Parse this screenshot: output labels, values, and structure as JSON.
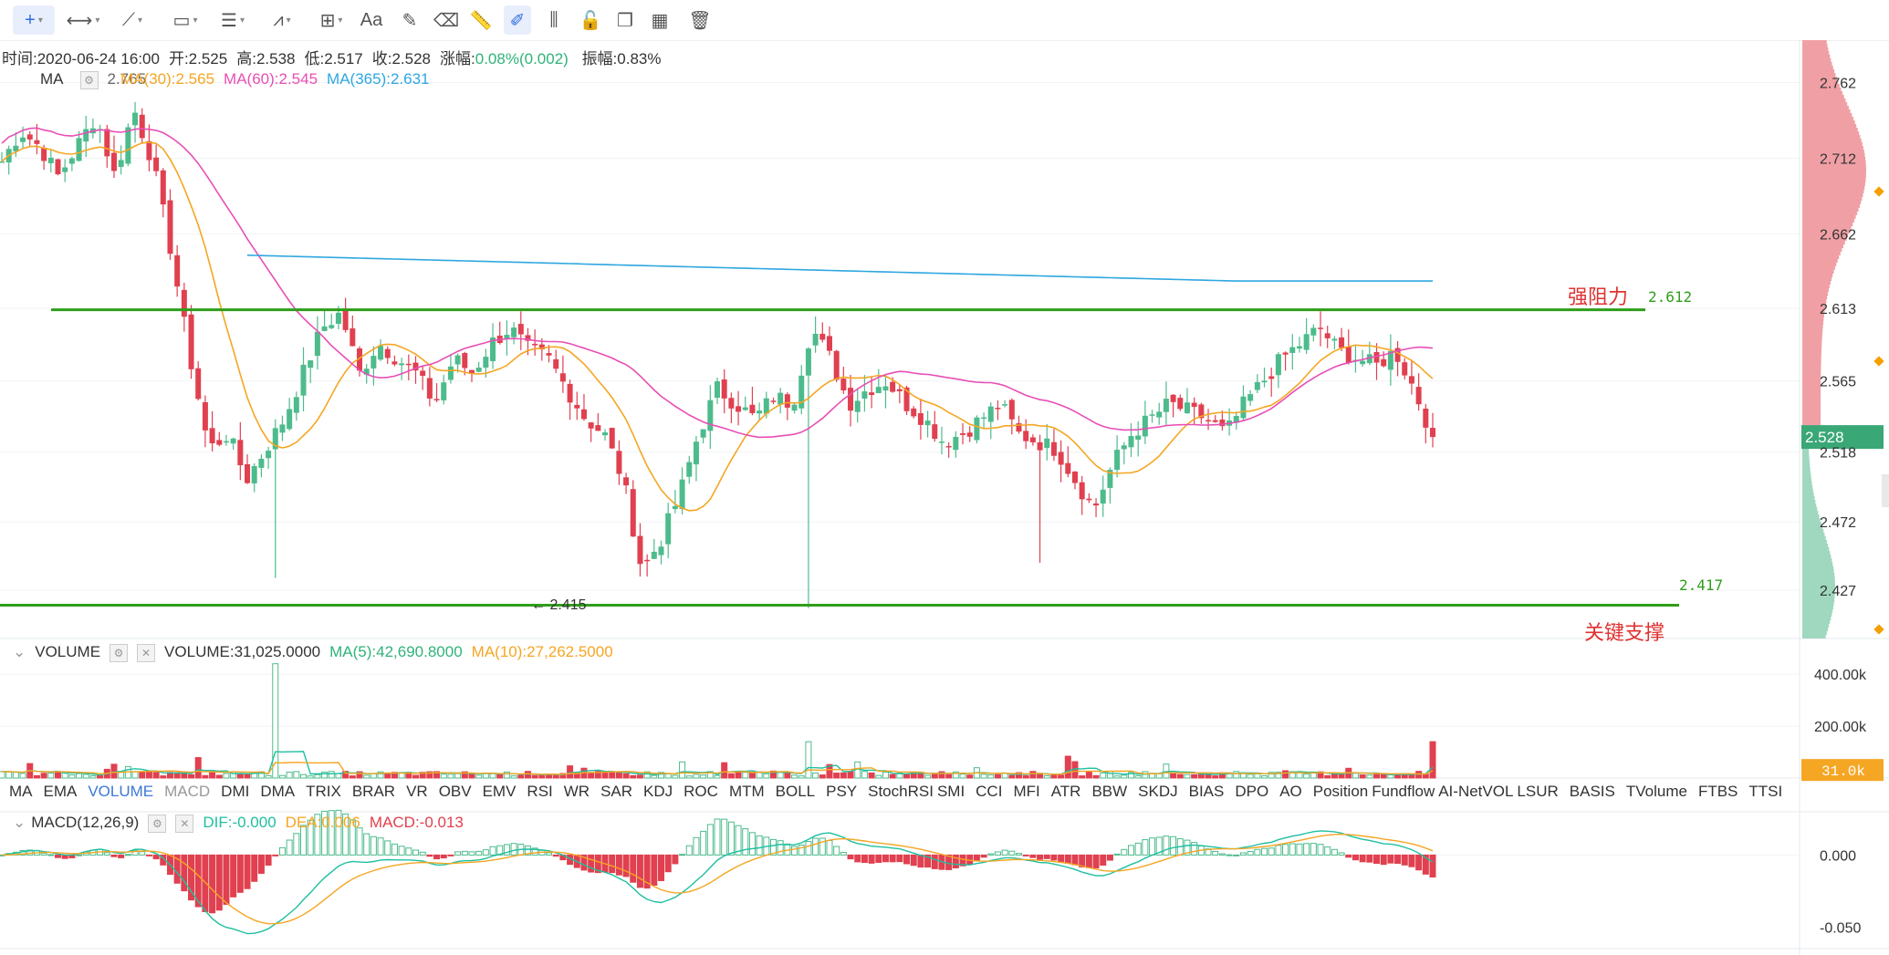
{
  "toolbar": {
    "tools": [
      "crosshair-icon",
      "horizontal-line-icon",
      "trend-line-icon",
      "rectangle-icon",
      "parallel-lines-icon",
      "fib-icon",
      "measure-icon",
      "text-icon",
      "brush-icon",
      "eraser-icon",
      "ruler-icon",
      "pen-icon",
      "bars-pattern-icon",
      "lock-icon",
      "copy-icon",
      "calendar-icon",
      "trash-icon"
    ],
    "text_tool_label": "Aa"
  },
  "header": {
    "time_label": "时间:2020-06-24 16:00",
    "open": "开:2.525",
    "high": "高:2.538",
    "low": "低:2.517",
    "close": "收:2.528",
    "change_label": "涨幅:",
    "change_value": "0.08%(0.002)",
    "amplitude": "振幅:0.83%"
  },
  "ma_legend": {
    "name": "MA",
    "ma_cut": "2.765",
    "ma30": "MA(30):2.565",
    "ma60": "MA(60):2.545",
    "ma365": "MA(365):2.631"
  },
  "volume_legend": {
    "name": "VOLUME",
    "volume": "VOLUME:31,025.0000",
    "ma5": "MA(5):42,690.8000",
    "ma10": "MA(10):27,262.5000"
  },
  "macd_legend": {
    "name": "MACD(12,26,9)",
    "dif": "DIF:-0.000",
    "dea": "DEA:0.006",
    "macd": "MACD:-0.013"
  },
  "indicator_tabs": [
    "MA",
    "EMA",
    "VOLUME",
    "MACD",
    "DMI",
    "DMA",
    "TRIX",
    "BRAR",
    "VR",
    "OBV",
    "EMV",
    "RSI",
    "WR",
    "SAR",
    "KDJ",
    "ROC",
    "MTM",
    "BOLL",
    "PSY",
    "StochRSI",
    "SMI",
    "CCI",
    "MFI",
    "ATR",
    "BBW",
    "SKDJ",
    "BIAS",
    "DPO",
    "AO",
    "Position",
    "Fundflow",
    "AI-NetVOL",
    "LSUR",
    "BASIS",
    "TVolume",
    "FTBS",
    "TTSI"
  ],
  "price_axis": [
    "2.762",
    "2.712",
    "2.662",
    "2.613",
    "2.565",
    "2.518",
    "2.472",
    "2.427"
  ],
  "current_price": "2.528",
  "volume_axis": [
    "400.00k",
    "200.00k"
  ],
  "volume_current": "31.0k",
  "macd_axis": [
    "0.000",
    "-0.050"
  ],
  "annotations": {
    "resistance_label": "强阻力",
    "resistance_value": "2.612",
    "support_label": "关键支撑",
    "support_value": "2.417",
    "low_marker": "2.415"
  },
  "colors": {
    "up": "#4dbb8c",
    "down": "#e0404f",
    "ma30": "#f5a623",
    "ma60": "#e84fb5",
    "ma365": "#2ea7e0",
    "level_line": "#2f9e1a",
    "annotation": "#e03131"
  },
  "chart_data": {
    "type": "candlestick",
    "price_range": [
      2.395,
      2.79
    ],
    "resistance_level": 2.612,
    "support_level": 2.417,
    "close_path": [
      2.71,
      2.73,
      2.72,
      2.7,
      2.72,
      2.74,
      2.7,
      2.745,
      2.71,
      2.65,
      2.58,
      2.52,
      2.53,
      2.5,
      2.52,
      2.54,
      2.57,
      2.6,
      2.61,
      2.57,
      2.59,
      2.58,
      2.57,
      2.55,
      2.58,
      2.57,
      2.59,
      2.6,
      2.585,
      2.58,
      2.56,
      2.54,
      2.53,
      2.5,
      2.44,
      2.46,
      2.49,
      2.53,
      2.56,
      2.55,
      2.54,
      2.555,
      2.55,
      2.6,
      2.58,
      2.55,
      2.56,
      2.565,
      2.55,
      2.54,
      2.525,
      2.53,
      2.54,
      2.55,
      2.53,
      2.525,
      2.52,
      2.5,
      2.48,
      2.51,
      2.53,
      2.54,
      2.55,
      2.545,
      2.54,
      2.53,
      2.55,
      2.565,
      2.58,
      2.59,
      2.6,
      2.585,
      2.58,
      2.575,
      2.585,
      2.56,
      2.528
    ],
    "candles_approx": 205,
    "volume_range": [
      0,
      460000
    ],
    "macd_range": [
      -0.065,
      0.03
    ],
    "ma365_start_value": 2.648,
    "ma365_end_value": 2.631
  }
}
